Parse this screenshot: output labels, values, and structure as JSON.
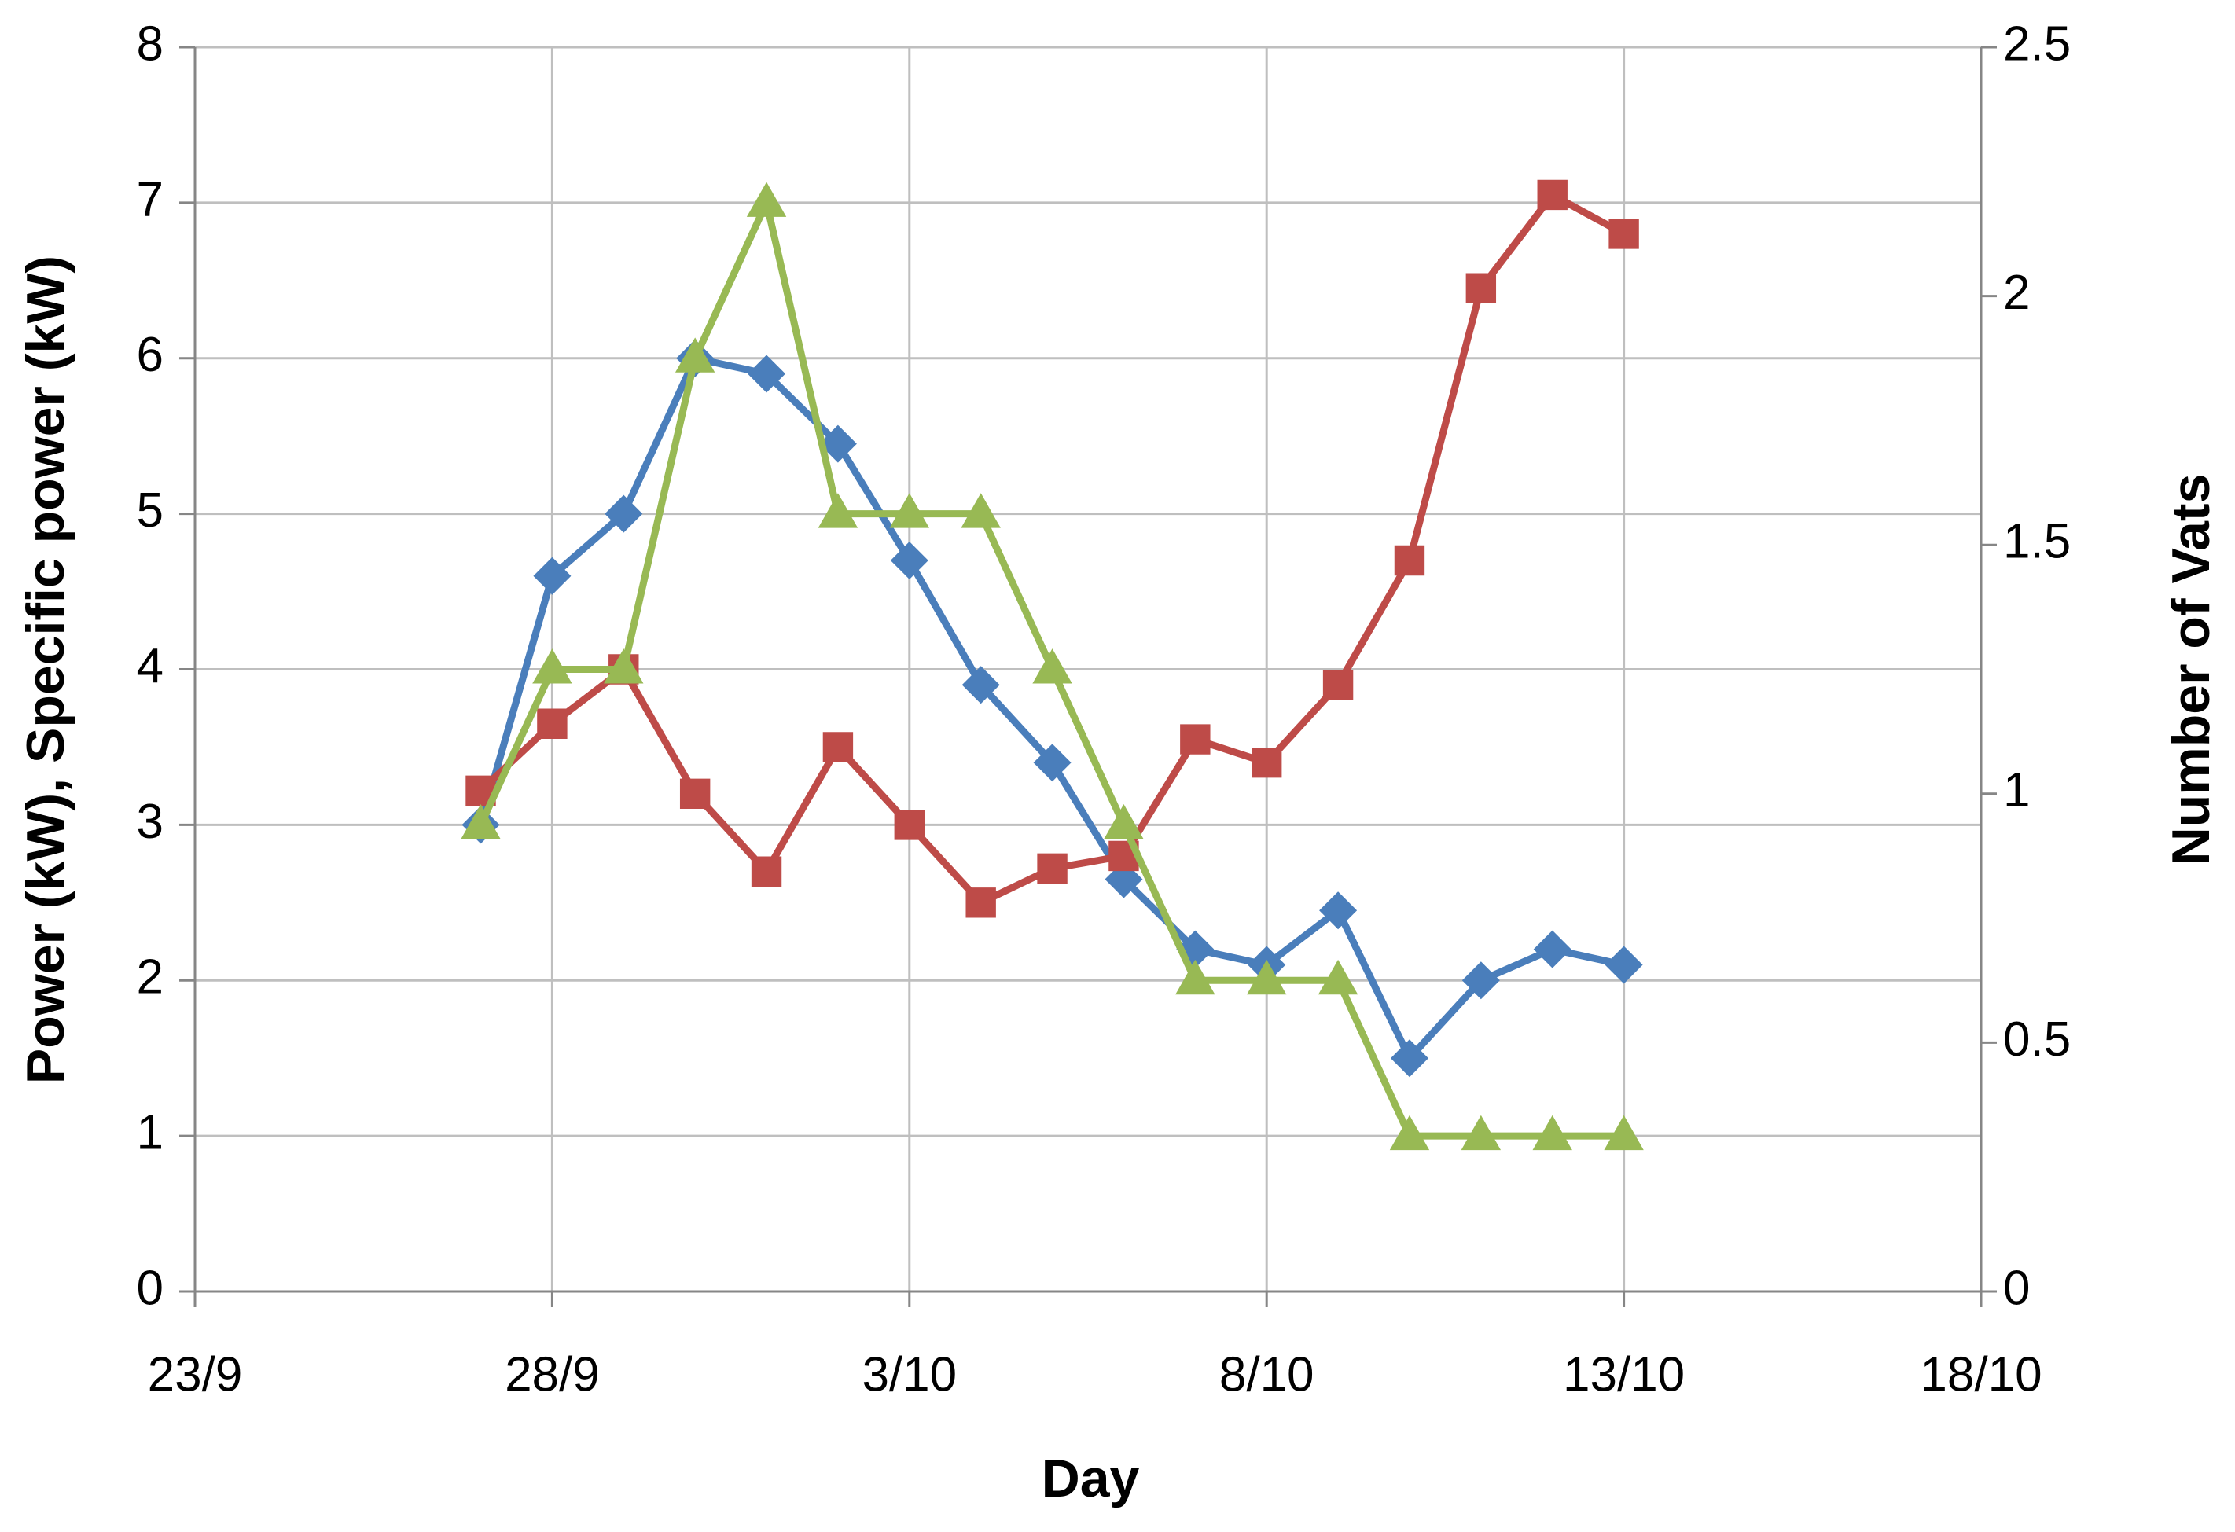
{
  "chart_data": {
    "type": "line",
    "x_label": "Day",
    "y_label": "Power (kW), Specific power (kW)",
    "y2_label": "Number of Vats",
    "x": [
      "27/9",
      "28/9",
      "29/9",
      "30/9",
      "1/10",
      "2/10",
      "3/10",
      "4/10",
      "5/10",
      "6/10",
      "7/10",
      "8/10",
      "9/10",
      "10/10",
      "11/10",
      "12/10",
      "13/10"
    ],
    "xlim": [
      "23/9",
      "18/10"
    ],
    "xticks": [
      "23/9",
      "28/9",
      "3/10",
      "8/10",
      "13/10",
      "18/10"
    ],
    "ylim": [
      0,
      8
    ],
    "yticks": [
      0,
      1,
      2,
      3,
      4,
      5,
      6,
      7,
      8
    ],
    "y2lim": [
      0,
      2.5
    ],
    "y2ticks": [
      0,
      0.5,
      1,
      1.5,
      2,
      2.5
    ],
    "grid": true,
    "series": [
      {
        "color": "#4a7ebb",
        "marker": "diamond",
        "values": [
          3.0,
          4.6,
          5.0,
          6.0,
          5.9,
          5.45,
          4.7,
          3.9,
          3.4,
          2.65,
          2.2,
          2.1,
          2.45,
          1.5,
          2.0,
          2.2,
          2.1
        ]
      },
      {
        "color": "#be4b48",
        "marker": "square",
        "values": [
          3.22,
          3.65,
          4.0,
          3.2,
          2.7,
          3.5,
          3.0,
          2.5,
          2.72,
          2.8,
          3.55,
          3.4,
          3.9,
          4.7,
          6.45,
          7.05,
          6.8
        ]
      },
      {
        "color": "#98b954",
        "marker": "triangle",
        "values": [
          3,
          4,
          4,
          6,
          7,
          5,
          5,
          5,
          4,
          3,
          2,
          2,
          2,
          1,
          1,
          1,
          1
        ]
      }
    ]
  }
}
